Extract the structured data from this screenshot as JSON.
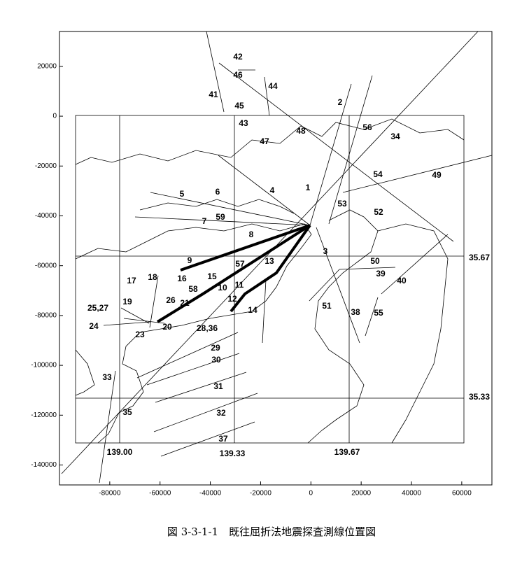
{
  "axes": {
    "xlim": [
      -100000,
      72000
    ],
    "ylim": [
      -148000,
      34000
    ],
    "xticks": [
      -80000,
      -60000,
      -40000,
      -20000,
      0,
      20000,
      40000,
      60000
    ],
    "yticks": [
      20000,
      0,
      -20000,
      -40000,
      -60000,
      -80000,
      -100000,
      -120000,
      -140000
    ]
  },
  "grid_labels": [
    "139.00",
    "139.33",
    "139.67",
    "35.67",
    "35.33"
  ],
  "line_labels": [
    "42",
    "46",
    "44",
    "41",
    "45",
    "2",
    "43",
    "56",
    "48",
    "47",
    "34",
    "1",
    "54",
    "49",
    "5",
    "6",
    "4",
    "53",
    "52",
    "59",
    "7",
    "8",
    "9",
    "57",
    "13",
    "3",
    "50",
    "39",
    "40",
    "18",
    "17",
    "16",
    "15",
    "58",
    "10",
    "11",
    "19",
    "26",
    "21",
    "12",
    "14",
    "51",
    "38",
    "55",
    "25,27",
    "24",
    "20",
    "23",
    "28,36",
    "29",
    "30",
    "31",
    "33",
    "35",
    "32",
    "37"
  ],
  "caption": "図 3-3-1-1　既往屈折法地震探査測線位置図"
}
